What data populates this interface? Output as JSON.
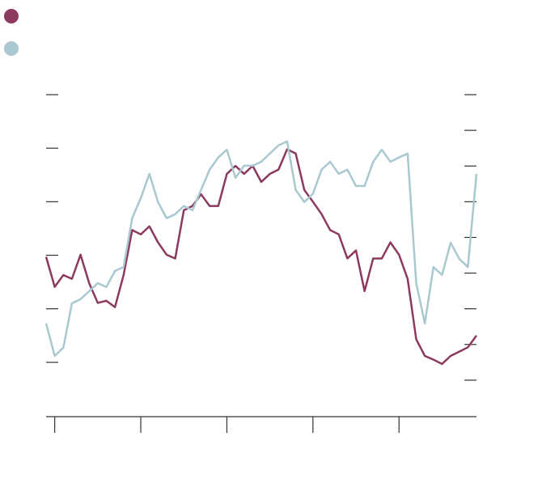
{
  "chart_data": {
    "type": "line",
    "x": [
      0,
      2,
      4,
      6,
      8,
      10,
      12,
      14,
      16,
      18,
      20,
      22,
      24,
      26,
      28,
      30,
      32,
      34,
      36,
      38,
      40,
      42,
      44,
      46,
      48,
      50,
      52,
      54,
      56,
      58,
      60,
      62,
      64,
      66,
      68,
      70,
      72,
      74,
      76,
      78,
      80,
      82,
      84,
      86,
      88,
      90,
      92,
      94,
      96,
      98,
      100
    ],
    "series": [
      {
        "color": "#8b3a5e",
        "values": [
          1.97,
          1.41,
          1.63,
          1.56,
          2.01,
          1.48,
          1.11,
          1.15,
          1.03,
          1.63,
          2.47,
          2.39,
          2.54,
          2.24,
          2.01,
          1.94,
          2.84,
          2.92,
          3.14,
          2.92,
          2.92,
          3.52,
          3.67,
          3.52,
          3.67,
          3.37,
          3.52,
          3.6,
          3.98,
          3.9,
          3.22,
          3.0,
          2.77,
          2.47,
          2.39,
          1.94,
          2.09,
          1.33,
          1.94,
          1.94,
          2.24,
          2.01,
          1.56,
          0.43,
          0.12,
          0.05,
          -0.03,
          0.12,
          0.2,
          0.28,
          0.5
        ]
      },
      {
        "color": "#a9c8d0",
        "axis": "y2",
        "values": [
          1.59,
          0.68,
          0.91,
          2.15,
          2.27,
          2.49,
          2.72,
          2.61,
          3.06,
          3.17,
          4.54,
          5.1,
          5.78,
          4.99,
          4.54,
          4.65,
          4.88,
          4.76,
          5.33,
          5.9,
          6.24,
          6.46,
          5.67,
          6.01,
          6.01,
          6.12,
          6.35,
          6.58,
          6.69,
          5.33,
          4.99,
          5.22,
          5.9,
          6.12,
          5.78,
          5.9,
          5.44,
          5.44,
          6.12,
          6.46,
          6.12,
          6.24,
          6.35,
          2.72,
          1.59,
          3.17,
          2.95,
          3.85,
          3.4,
          3.17,
          5.78
        ]
      }
    ],
    "xlim": [
      0,
      100
    ],
    "xticks": [
      {
        "value": 2,
        "label": null
      },
      {
        "value": 22,
        "label": null
      },
      {
        "value": 42,
        "label": null
      },
      {
        "value": 62,
        "label": null
      },
      {
        "value": 82,
        "label": null
      }
    ],
    "ylim": [
      -1,
      5
    ],
    "yticks": [
      {
        "value": 0,
        "label": null
      },
      {
        "value": 1,
        "label": null
      },
      {
        "value": 2,
        "label": null
      },
      {
        "value": 3,
        "label": null
      },
      {
        "value": 4,
        "label": null
      },
      {
        "value": 5,
        "label": null
      }
    ],
    "y2lim": [
      -1,
      8
    ],
    "y2ticks": [
      {
        "value": 0,
        "label": null
      },
      {
        "value": 1,
        "label": null
      },
      {
        "value": 2,
        "label": null
      },
      {
        "value": 3,
        "label": null
      },
      {
        "value": 4,
        "label": null
      },
      {
        "value": 5,
        "label": null
      },
      {
        "value": 6,
        "label": null
      },
      {
        "value": 7,
        "label": null
      },
      {
        "value": 8,
        "label": null
      }
    ]
  }
}
